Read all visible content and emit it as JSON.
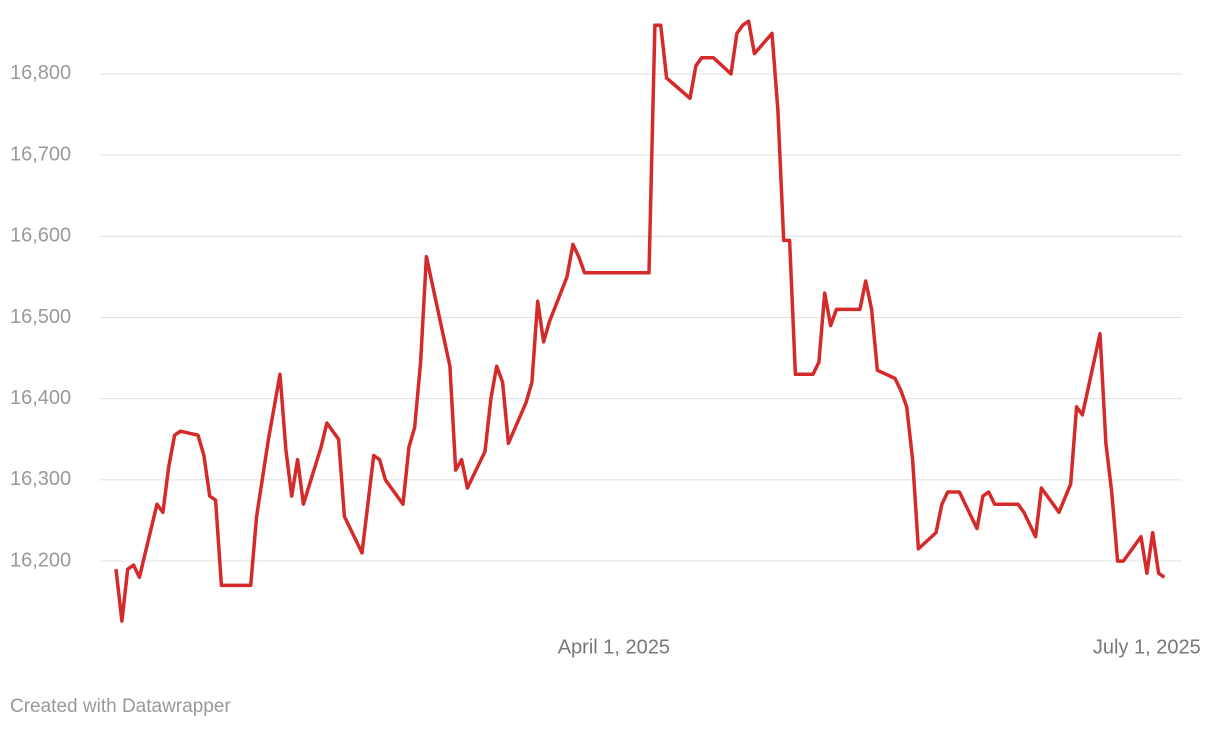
{
  "chart_data": {
    "type": "line",
    "x": [
      "2025-01-06",
      "2025-01-07",
      "2025-01-08",
      "2025-01-09",
      "2025-01-10",
      "2025-01-13",
      "2025-01-14",
      "2025-01-15",
      "2025-01-16",
      "2025-01-17",
      "2025-01-20",
      "2025-01-21",
      "2025-01-22",
      "2025-01-23",
      "2025-01-24",
      "2025-01-29",
      "2025-01-30",
      "2025-02-01",
      "2025-02-03",
      "2025-02-04",
      "2025-02-05",
      "2025-02-06",
      "2025-02-07",
      "2025-02-10",
      "2025-02-11",
      "2025-02-13",
      "2025-02-14",
      "2025-02-17",
      "2025-02-19",
      "2025-02-20",
      "2025-02-21",
      "2025-02-24",
      "2025-02-25",
      "2025-02-26",
      "2025-02-27",
      "2025-02-28",
      "2025-03-04",
      "2025-03-05",
      "2025-03-06",
      "2025-03-07",
      "2025-03-10",
      "2025-03-11",
      "2025-03-12",
      "2025-03-13",
      "2025-03-14",
      "2025-03-17",
      "2025-03-18",
      "2025-03-19",
      "2025-03-20",
      "2025-03-21",
      "2025-03-24",
      "2025-03-25",
      "2025-03-26",
      "2025-03-27",
      "2025-04-07",
      "2025-04-08",
      "2025-04-09",
      "2025-04-10",
      "2025-04-14",
      "2025-04-15",
      "2025-04-16",
      "2025-04-18",
      "2025-04-21",
      "2025-04-22",
      "2025-04-23",
      "2025-04-24",
      "2025-04-25",
      "2025-04-28",
      "2025-04-29",
      "2025-04-30",
      "2025-05-01",
      "2025-05-02",
      "2025-05-05",
      "2025-05-06",
      "2025-05-07",
      "2025-05-08",
      "2025-05-09",
      "2025-05-13",
      "2025-05-14",
      "2025-05-15",
      "2025-05-16",
      "2025-05-19",
      "2025-05-20",
      "2025-05-21",
      "2025-05-22",
      "2025-05-23",
      "2025-05-26",
      "2025-05-27",
      "2025-05-28",
      "2025-05-30",
      "2025-06-02",
      "2025-06-03",
      "2025-06-04",
      "2025-06-05",
      "2025-06-09",
      "2025-06-10",
      "2025-06-12",
      "2025-06-13",
      "2025-06-16",
      "2025-06-18",
      "2025-06-19",
      "2025-06-20",
      "2025-06-23",
      "2025-06-24",
      "2025-06-25",
      "2025-06-26",
      "2025-06-27",
      "2025-06-30",
      "2025-07-01",
      "2025-07-02",
      "2025-07-03",
      "2025-07-04"
    ],
    "values": [
      16190,
      16126,
      16190,
      16195,
      16180,
      16270,
      16260,
      16316,
      16355,
      16360,
      16355,
      16330,
      16280,
      16275,
      16170,
      16170,
      16255,
      16349,
      16430,
      16337,
      16280,
      16325,
      16270,
      16340,
      16370,
      16350,
      16255,
      16210,
      16330,
      16325,
      16300,
      16270,
      16340,
      16365,
      16445,
      16575,
      16440,
      16312,
      16325,
      16290,
      16335,
      16400,
      16440,
      16420,
      16345,
      16395,
      16420,
      16520,
      16470,
      16495,
      16550,
      16590,
      16575,
      16555,
      16555,
      16860,
      16860,
      16795,
      16770,
      16810,
      16820,
      16820,
      16800,
      16850,
      16860,
      16865,
      16825,
      16850,
      16755,
      16595,
      16595,
      16430,
      16430,
      16445,
      16530,
      16490,
      16510,
      16510,
      16545,
      16510,
      16435,
      16425,
      16410,
      16390,
      16325,
      16215,
      16235,
      16270,
      16285,
      16285,
      16240,
      16280,
      16285,
      16270,
      16270,
      16260,
      16230,
      16290,
      16260,
      16295,
      16390,
      16380,
      16480,
      16345,
      16285,
      16200,
      16200,
      16230,
      16185,
      16235,
      16185,
      16180
    ],
    "color": "#d42a2a",
    "xlim": [
      "2025-01-06",
      "2025-07-07"
    ],
    "xticks": [
      {
        "value": "2025-04-01",
        "label": "April 1, 2025"
      },
      {
        "value": "2025-07-01",
        "label": "July 1, 2025"
      }
    ],
    "ylim": [
      16120,
      16880
    ],
    "yticks": [
      {
        "value": 16200,
        "label": "16,200"
      },
      {
        "value": 16300,
        "label": "16,300"
      },
      {
        "value": 16400,
        "label": "16,400"
      },
      {
        "value": 16500,
        "label": "16,500"
      },
      {
        "value": 16600,
        "label": "16,600"
      },
      {
        "value": 16700,
        "label": "16,700"
      },
      {
        "value": 16800,
        "label": "16,800"
      }
    ],
    "grid": true,
    "note": "Created with Datawrapper"
  }
}
